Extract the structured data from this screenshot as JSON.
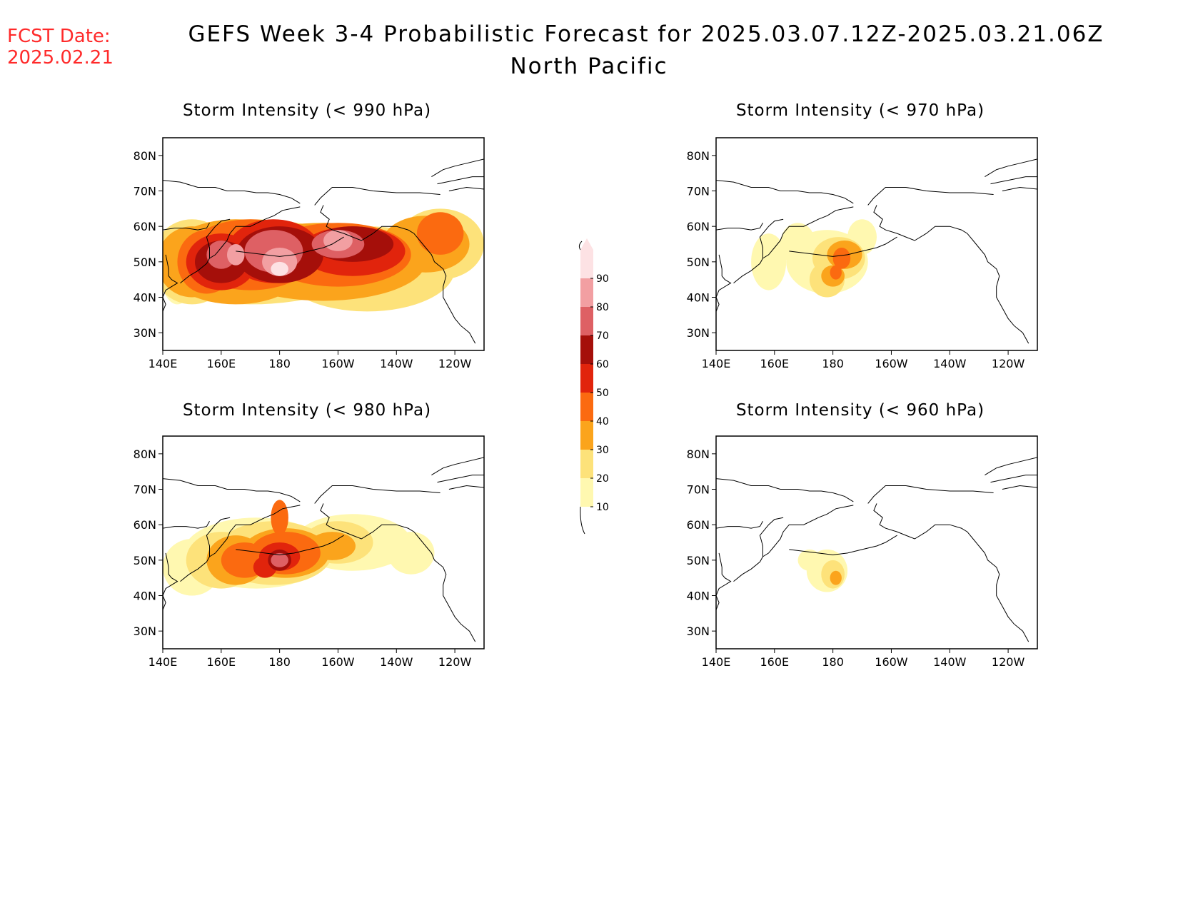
{
  "fcst": {
    "label": "FCST Date:",
    "date": "2025.02.21"
  },
  "title": "GEFS Week 3-4 Probabilistic Forecast for 2025.03.07.12Z-2025.03.21.06Z",
  "subtitle": "North Pacific",
  "panels": [
    {
      "id": "p990",
      "title": "Storm Intensity (< 990 hPa)"
    },
    {
      "id": "p970",
      "title": "Storm Intensity (< 970 hPa)"
    },
    {
      "id": "p980",
      "title": "Storm Intensity (< 980 hPa)"
    },
    {
      "id": "p960",
      "title": "Storm Intensity (< 960 hPa)"
    }
  ],
  "axes": {
    "lat_labels": [
      "80N",
      "70N",
      "60N",
      "50N",
      "40N",
      "30N"
    ],
    "lon_labels": [
      "140E",
      "160E",
      "180",
      "160W",
      "140W",
      "120W"
    ],
    "lat_values": [
      80,
      70,
      60,
      50,
      40,
      30
    ],
    "lon_values": [
      140,
      160,
      180,
      200,
      220,
      240
    ],
    "lat_range": [
      25,
      85
    ],
    "lon_range": [
      140,
      250
    ]
  },
  "colorbar": {
    "levels": [
      "10",
      "20",
      "30",
      "40",
      "50",
      "60",
      "70",
      "80",
      "90"
    ],
    "colors": [
      "#fff8b0",
      "#fde27a",
      "#fba41c",
      "#fb6a10",
      "#e1240c",
      "#a50f0a",
      "#de6064",
      "#f29fa2",
      "#fde2e4"
    ]
  }
}
